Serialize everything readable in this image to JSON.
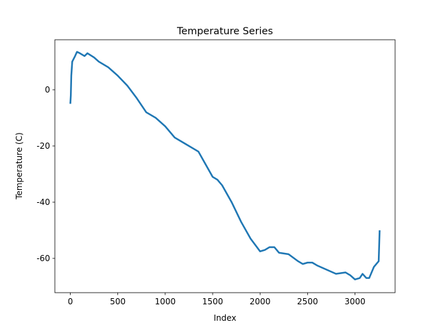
{
  "chart_data": {
    "type": "line",
    "title": "Temperature Series",
    "xlabel": "Index",
    "ylabel": "Temperature (C)",
    "series": [
      {
        "name": "Temperature",
        "color": "#1f77b4",
        "x": [
          0,
          5,
          10,
          20,
          50,
          70,
          100,
          150,
          180,
          250,
          300,
          400,
          500,
          600,
          700,
          800,
          900,
          1000,
          1100,
          1200,
          1300,
          1350,
          1400,
          1500,
          1550,
          1600,
          1700,
          1800,
          1900,
          2000,
          2050,
          2100,
          2150,
          2200,
          2300,
          2400,
          2450,
          2500,
          2550,
          2600,
          2700,
          2800,
          2900,
          2950,
          3000,
          3050,
          3080,
          3120,
          3150,
          3200,
          3250,
          3260
        ],
        "values": [
          -5,
          -2,
          5,
          10,
          12,
          13.5,
          13,
          12,
          13,
          11.5,
          10,
          8,
          5,
          1.5,
          -3,
          -8,
          -10,
          -13,
          -17,
          -19,
          -21,
          -22,
          -25,
          -31,
          -32,
          -34,
          -40,
          -47,
          -53,
          -57.5,
          -57,
          -56,
          -56,
          -58,
          -58.5,
          -61,
          -62,
          -61.5,
          -61.5,
          -62.5,
          -64,
          -65.5,
          -65,
          -66,
          -67.5,
          -67,
          -65.5,
          -67,
          -67,
          -63,
          -61,
          -50
        ]
      }
    ],
    "xlim": [
      -163,
      3423
    ],
    "xticks": [
      0,
      500,
      1000,
      1500,
      2000,
      2500,
      3000
    ],
    "ylim": [
      -72.2,
      17.8
    ],
    "yticks": [
      -60,
      -40,
      -20,
      0
    ],
    "grid": false
  }
}
